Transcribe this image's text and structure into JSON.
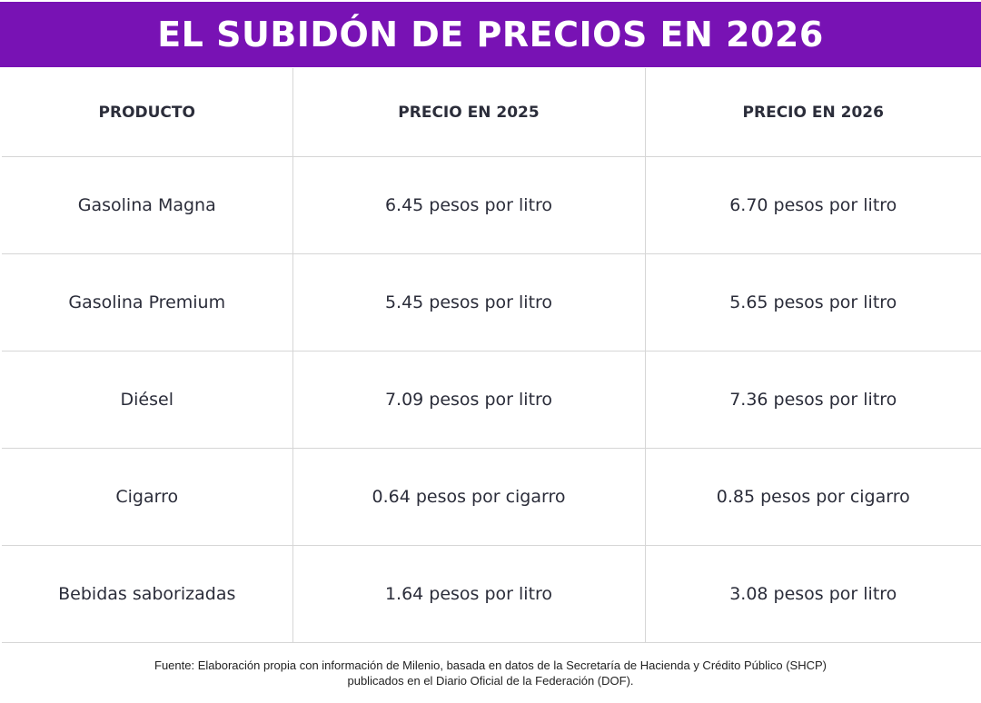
{
  "title": "EL SUBIDÓN DE PRECIOS EN 2026",
  "table": {
    "headers": [
      "PRODUCTO",
      "PRECIO EN 2025",
      "PRECIO EN 2026"
    ],
    "rows": [
      [
        "Gasolina Magna",
        "6.45 pesos por litro",
        "6.70 pesos por litro"
      ],
      [
        "Gasolina Premium",
        "5.45 pesos por litro",
        "5.65 pesos por litro"
      ],
      [
        "Diésel",
        "7.09 pesos por litro",
        "7.36 pesos por litro"
      ],
      [
        "Cigarro",
        "0.64 pesos por cigarro",
        "0.85 pesos por cigarro"
      ],
      [
        "Bebidas saborizadas",
        "1.64 pesos por litro",
        "3.08 pesos por litro"
      ]
    ]
  },
  "footer": {
    "line1": "Fuente: Elaboración propia con información de Milenio, basada en datos de la Secretaría de Hacienda y Crédito Público (SHCP)",
    "line2": "publicados en el Diario Oficial de la Federación (DOF)."
  },
  "colors": {
    "title_bg": "#7812b4",
    "title_text": "#ffffff",
    "text": "#2b2d3a",
    "grid": "#d6d6d6"
  }
}
